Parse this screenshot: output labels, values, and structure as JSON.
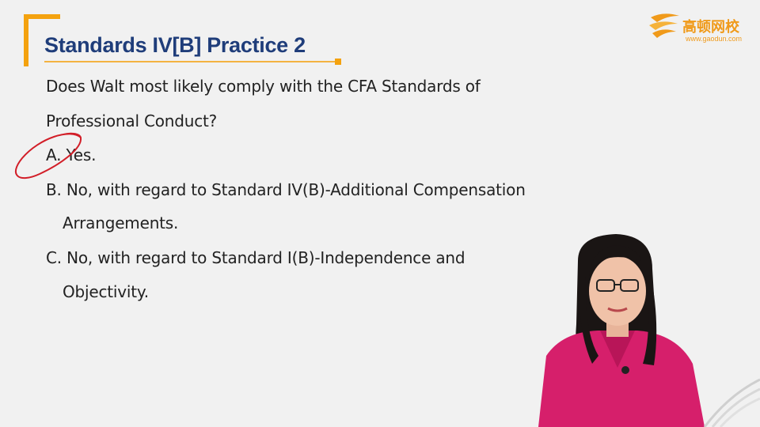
{
  "slide": {
    "title": "Standards IV[B] Practice 2",
    "question_line1": "Does Walt most likely comply with the CFA Standards of",
    "question_line2": "Professional Conduct?",
    "option_a": "A. Yes.",
    "option_b_line1": "B. No, with regard to Standard IV(B)-Additional Compensation",
    "option_b_line2": "Arrangements.",
    "option_c_line1": "C. No, with regard to Standard I(B)-Independence and",
    "option_c_line2": "Objectivity."
  },
  "logo": {
    "name_cn": "高顿网校",
    "url": "www.gaodun.com"
  },
  "colors": {
    "title": "#1f3d7a",
    "accent": "#f4a20f",
    "annotation": "#d21e28",
    "presenter_top": "#d61f6b"
  }
}
